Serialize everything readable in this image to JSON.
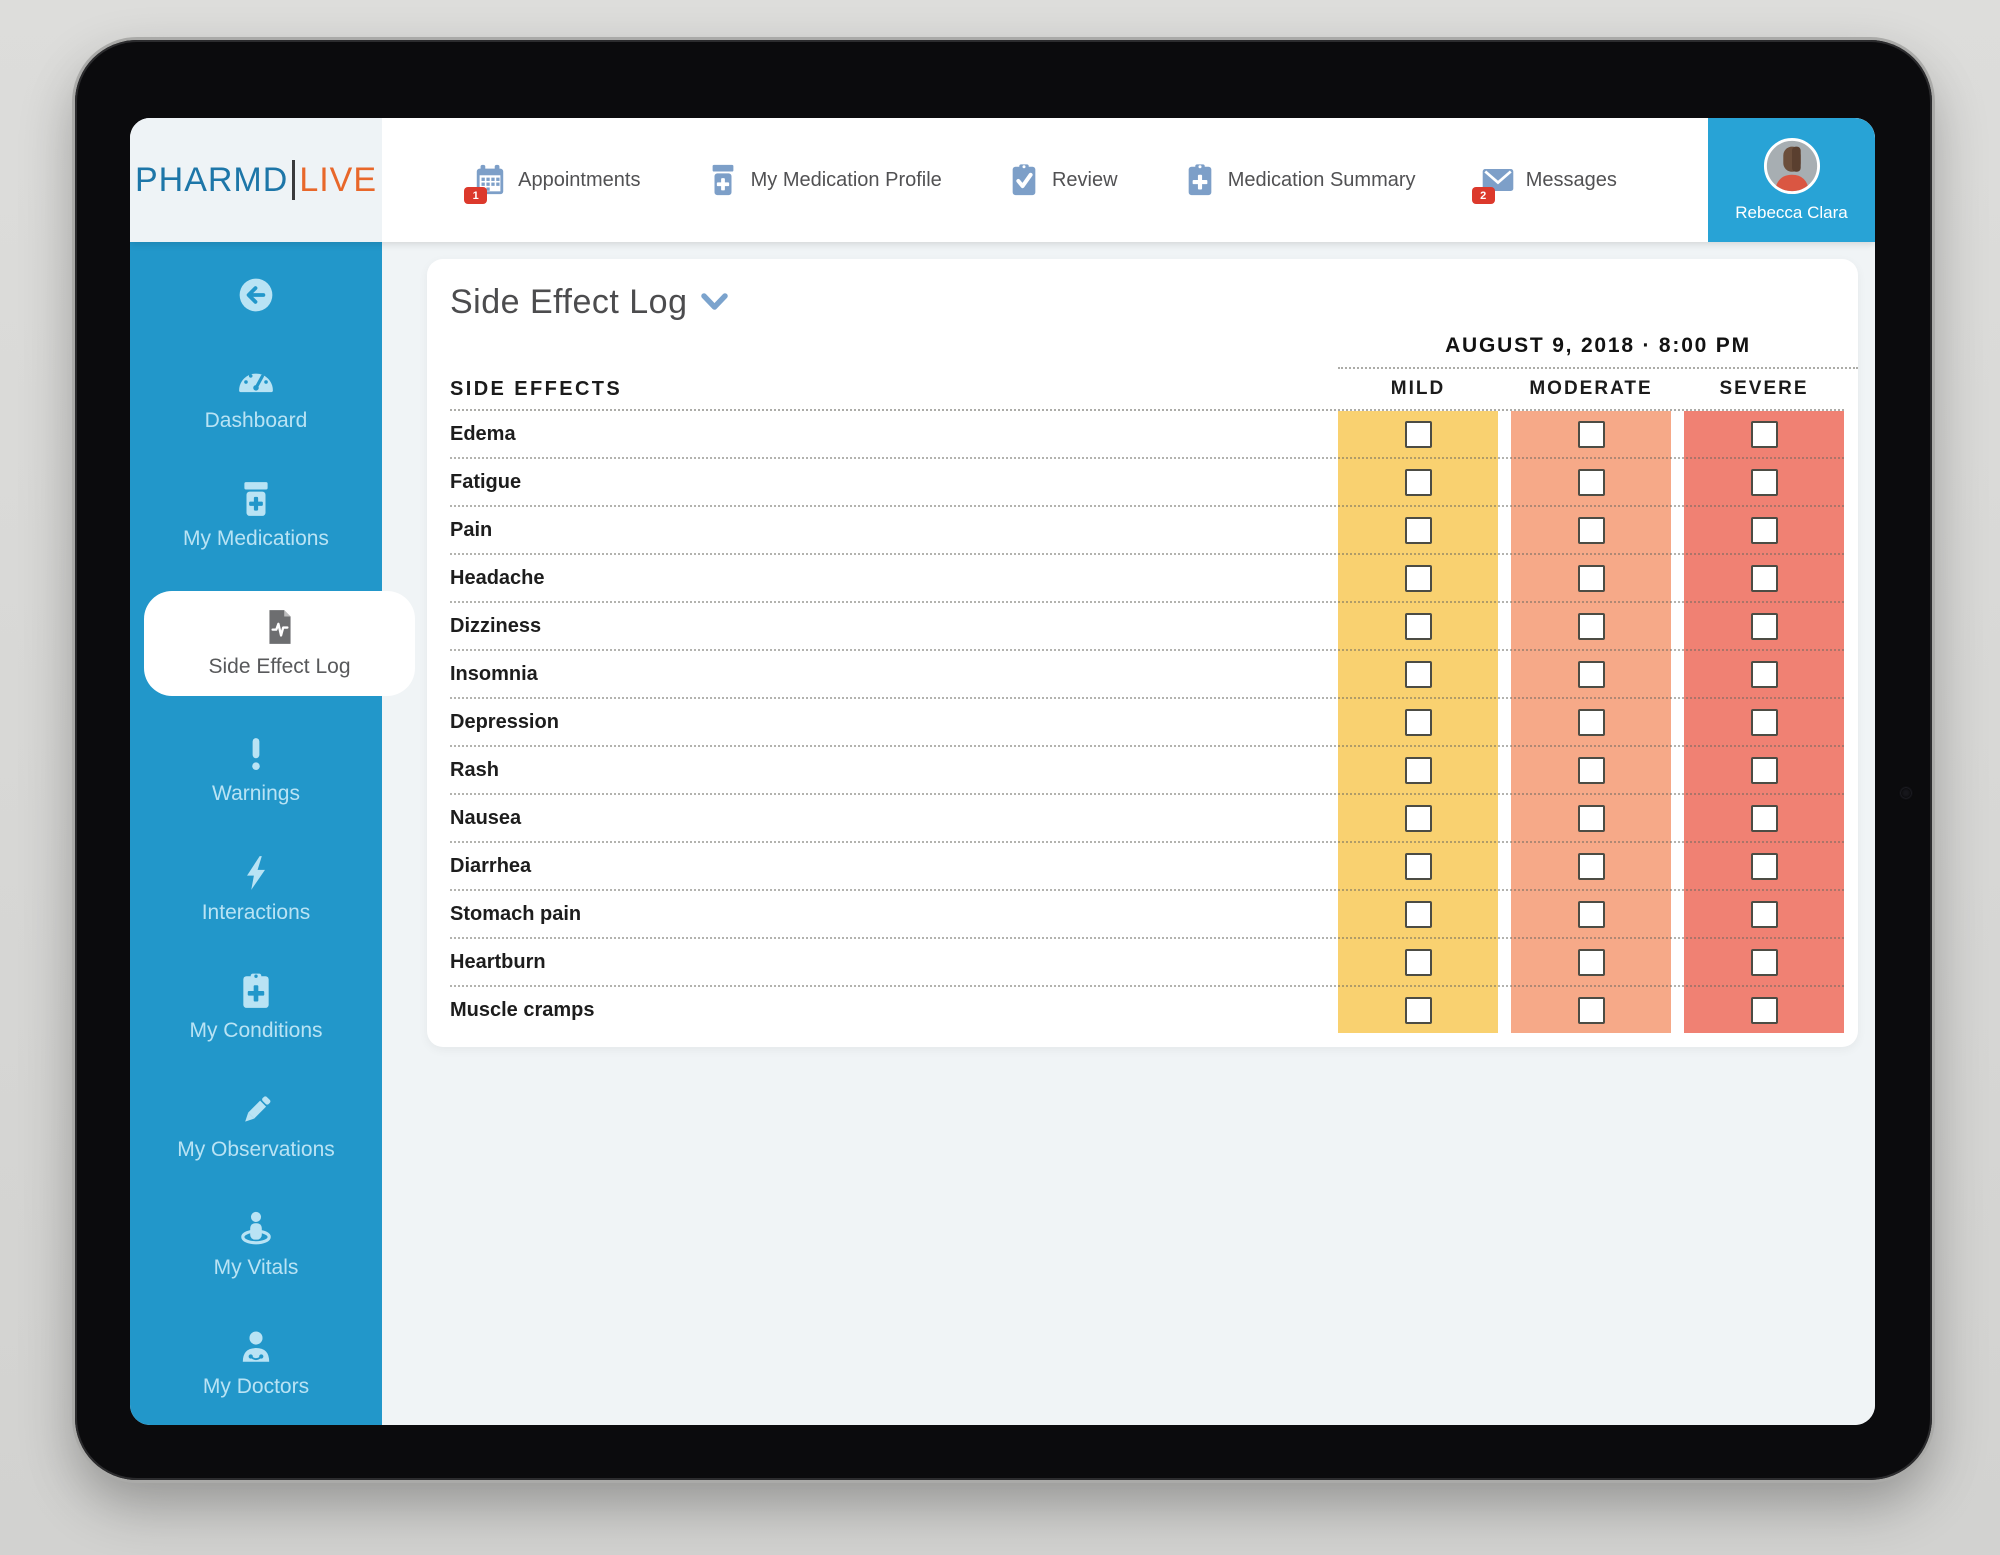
{
  "brand": {
    "primary": "PHARMD",
    "secondary": "LIVE"
  },
  "header": {
    "nav_items": [
      {
        "label": "Appointments",
        "icon": "calendar-icon",
        "badge": "1"
      },
      {
        "label": "My Medication Profile",
        "icon": "pill-bottle-icon"
      },
      {
        "label": "Review",
        "icon": "clipboard-check-icon"
      },
      {
        "label": "Medication Summary",
        "icon": "clipboard-plus-icon"
      },
      {
        "label": "Messages",
        "icon": "envelope-icon",
        "badge": "2"
      }
    ],
    "user": {
      "name": "Rebecca Clara",
      "icon": "avatar-icon"
    }
  },
  "sidebar": {
    "items": [
      {
        "label": "",
        "icon": "back-icon",
        "name": "back-button"
      },
      {
        "label": "Dashboard",
        "icon": "gauge-icon"
      },
      {
        "label": "My Medications",
        "icon": "pill-bottle-icon"
      },
      {
        "label": "Side Effect Log",
        "icon": "document-pulse-icon",
        "active": true
      },
      {
        "label": "Warnings",
        "icon": "exclamation-icon"
      },
      {
        "label": "Interactions",
        "icon": "lightning-icon"
      },
      {
        "label": "My Conditions",
        "icon": "clipboard-plus-icon"
      },
      {
        "label": "My Observations",
        "icon": "pencil-icon"
      },
      {
        "label": "My Vitals",
        "icon": "vitals-person-icon"
      },
      {
        "label": "My Doctors",
        "icon": "doctor-icon"
      }
    ]
  },
  "main": {
    "title": "Side Effect Log",
    "title_chevron_icon": "chevron-down-icon",
    "datetime": "AUGUST 9, 2018 · 8:00 PM",
    "table": {
      "rows_header": "SIDE EFFECTS",
      "severities": [
        {
          "label": "MILD",
          "color": "#f9d170"
        },
        {
          "label": "MODERATE",
          "color": "#f6a988"
        },
        {
          "label": "SEVERE",
          "color": "#f08173"
        }
      ],
      "side_effects": [
        "Edema",
        "Fatigue",
        "Pain",
        "Headache",
        "Dizziness",
        "Insomnia",
        "Depression",
        "Rash",
        "Nausea",
        "Diarrhea",
        "Stomach pain",
        "Heartburn",
        "Muscle cramps"
      ],
      "checkboxes_checked": []
    }
  },
  "colors": {
    "sidebar_blue": "#2297ca",
    "nav_icon_blue": "#7d9fc8",
    "sidebar_icon_light": "#b9e3f4",
    "active_icon_gray": "#6d6e70",
    "badge_red": "#dc392c",
    "brand_blue": "#1d76a8",
    "brand_orange": "#e8672a"
  }
}
